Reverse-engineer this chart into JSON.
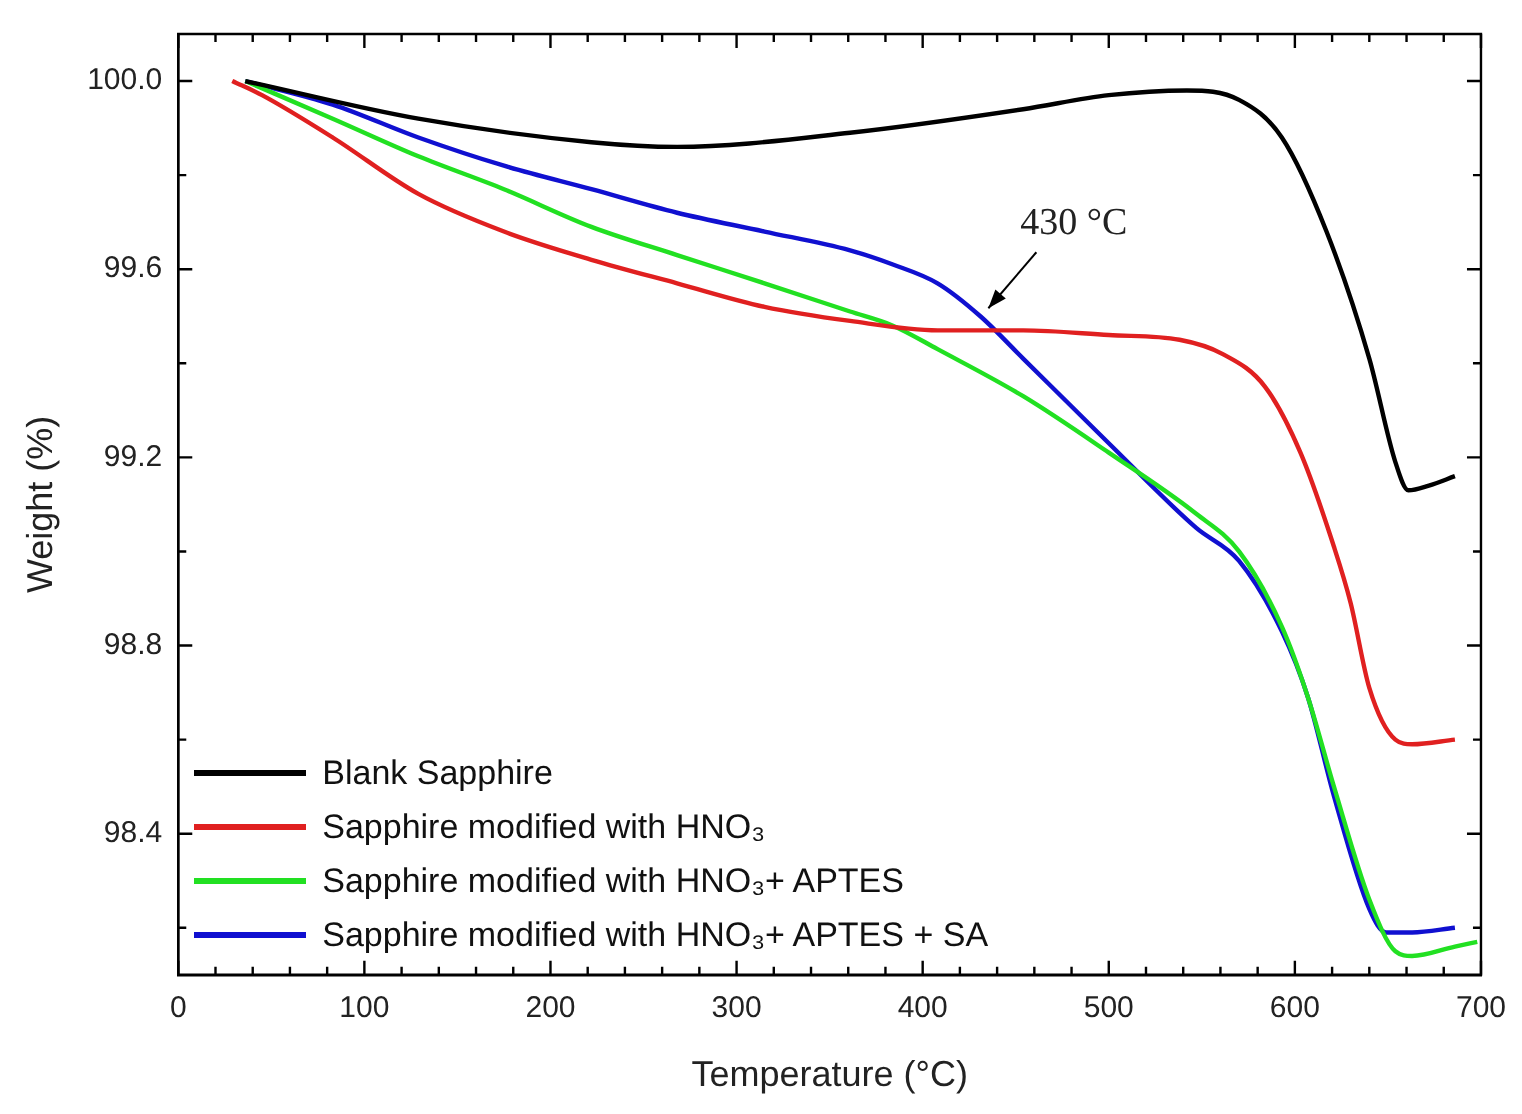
{
  "chart_data": {
    "type": "line",
    "xlabel": "Temperature (°C)",
    "ylabel": "Weight (%)",
    "xlim": [
      0,
      700
    ],
    "xticks": [
      0,
      100,
      200,
      300,
      400,
      500,
      600,
      700
    ],
    "ylim": [
      98.1,
      100.1
    ],
    "yticks": [
      98.4,
      98.8,
      99.2,
      99.6,
      {
        "value": 100,
        "label": "100.0"
      }
    ],
    "grid": false,
    "legend": "bottom left",
    "marker": "none",
    "line_style": "solid",
    "annotations": [
      {
        "text": "430 °C",
        "x": 431,
        "y": 99.5
      }
    ],
    "series": [
      {
        "name": "Blank Sapphire",
        "color": "#000000",
        "x": [
          36,
          129,
          222,
          268,
          361,
          454,
          500,
          542,
          570,
          593,
          617,
          640,
          654,
          661,
          672,
          686
        ],
        "values": [
          100.0,
          99.92,
          99.87,
          99.86,
          99.89,
          99.94,
          99.97,
          99.98,
          99.96,
          99.88,
          99.68,
          99.41,
          99.19,
          99.13,
          99.14,
          99.16
        ]
      },
      {
        "name": "Sapphire modified with HNO₃",
        "color": "#e02020",
        "x": [
          29,
          45,
          83,
          129,
          175,
          222,
          268,
          315,
          361,
          408,
          454,
          500,
          538,
          561,
          584,
          603,
          621,
          630,
          640,
          654,
          663,
          686
        ],
        "values": [
          100.0,
          99.97,
          99.88,
          99.76,
          99.68,
          99.62,
          99.57,
          99.52,
          99.49,
          99.47,
          99.47,
          99.46,
          99.45,
          99.42,
          99.35,
          99.21,
          99.01,
          98.89,
          98.71,
          98.6,
          98.59,
          98.6
        ]
      },
      {
        "name": "Sapphire modified with HNO₃+ APTES",
        "color": "#22e022",
        "x": [
          36,
          83,
          129,
          175,
          222,
          268,
          315,
          361,
          384,
          408,
          454,
          500,
          547,
          570,
          593,
          607,
          621,
          640,
          654,
          663,
          686,
          698
        ],
        "values": [
          100.0,
          99.92,
          99.84,
          99.77,
          99.69,
          99.63,
          99.57,
          99.51,
          99.48,
          99.43,
          99.33,
          99.21,
          99.08,
          99.0,
          98.84,
          98.69,
          98.5,
          98.26,
          98.15,
          98.14,
          98.16,
          98.17
        ]
      },
      {
        "name": "Sapphire modified with HNO₃+ APTES + SA",
        "color": "#1010d0",
        "x": [
          36,
          83,
          129,
          175,
          222,
          268,
          315,
          361,
          384,
          408,
          431,
          454,
          500,
          547,
          570,
          593,
          607,
          621,
          640,
          649,
          663,
          686
        ],
        "values": [
          100.0,
          99.95,
          99.88,
          99.82,
          99.77,
          99.72,
          99.68,
          99.64,
          99.61,
          99.57,
          99.5,
          99.41,
          99.23,
          99.05,
          98.98,
          98.83,
          98.69,
          98.48,
          98.24,
          98.19,
          98.19,
          98.2
        ]
      }
    ]
  }
}
